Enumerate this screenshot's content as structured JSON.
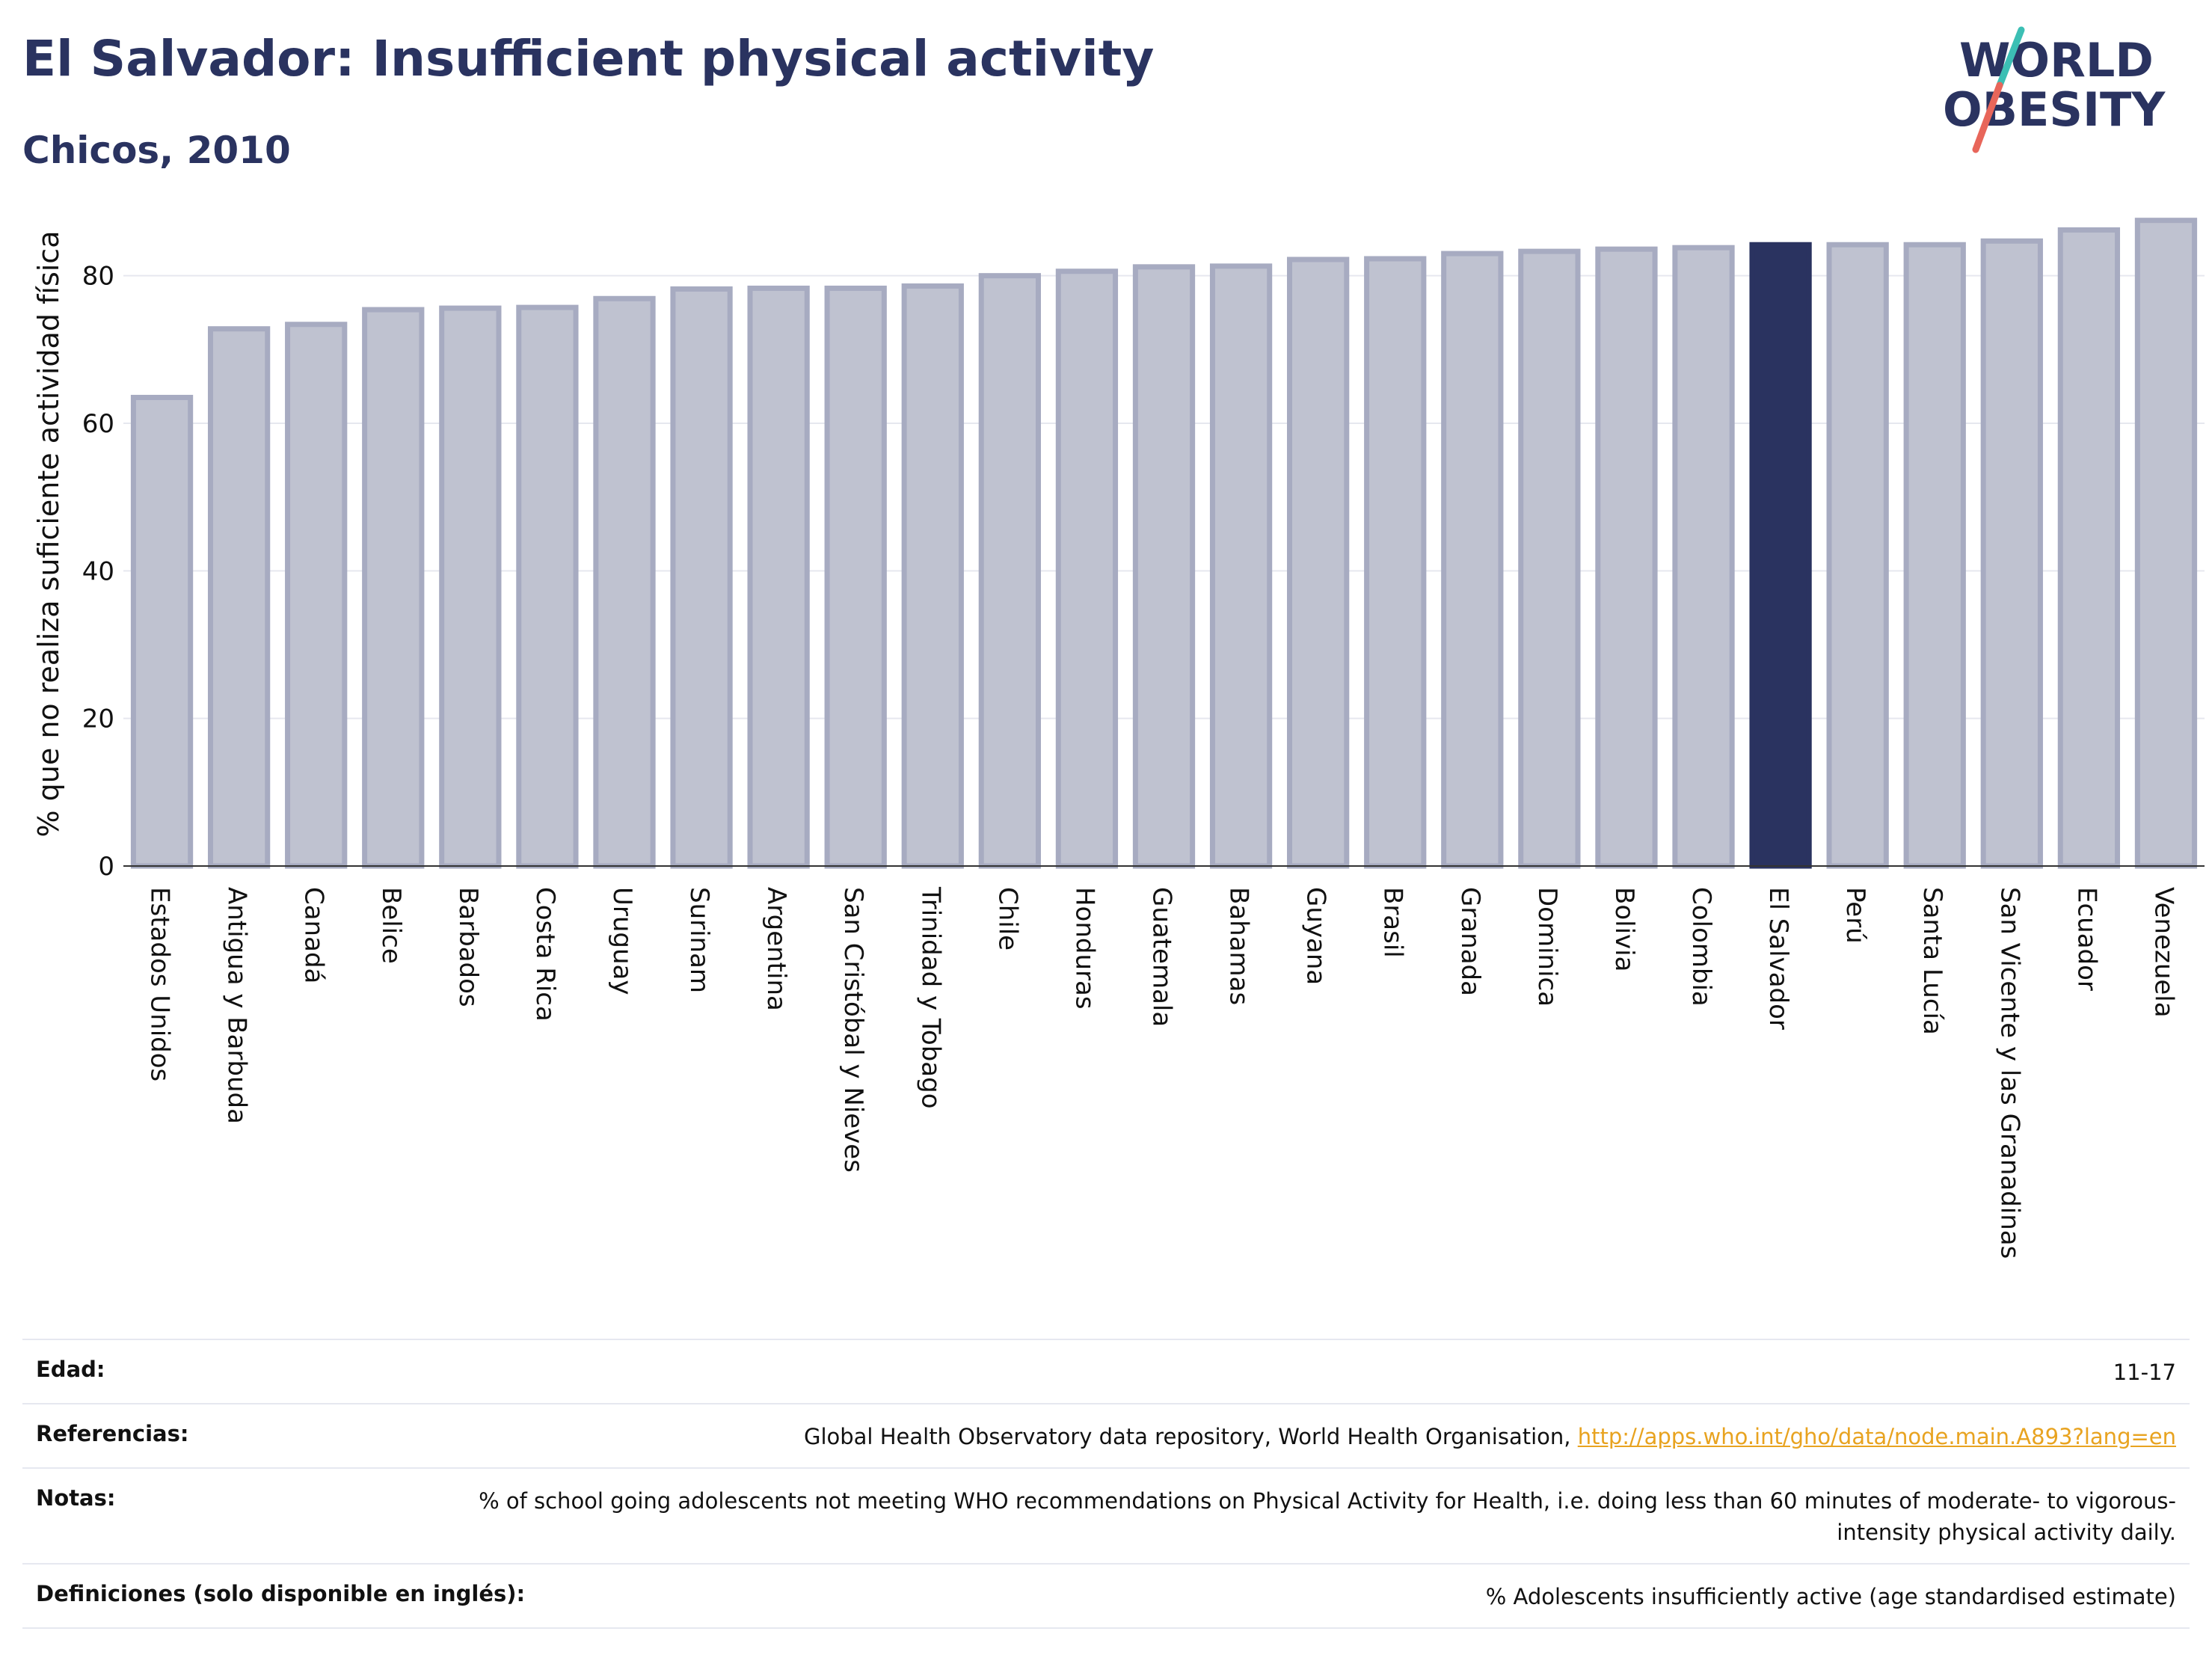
{
  "header": {
    "title": "El Salvador: Insufficient physical activity",
    "subtitle": "Chicos, 2010"
  },
  "logo": {
    "line1": "WORLD",
    "line2": "OBESITY",
    "colors": {
      "text": "#2a3360",
      "slash_teal": "#3cbfb4",
      "slash_red": "#e8665a"
    }
  },
  "chart_data": {
    "type": "bar",
    "title": "",
    "xlabel": "",
    "ylabel": "% que no realiza suficiente actividad física",
    "ylim": [
      0,
      90
    ],
    "yticks": [
      0,
      20,
      40,
      60,
      80
    ],
    "grid": true,
    "highlight": "El Salvador",
    "colors": {
      "bar": "#bfc2d0",
      "bar_edge": "#a7abc1",
      "highlight": "#2a3360",
      "grid": "#e6e8ef"
    },
    "categories": [
      "Estados Unidos",
      "Antigua y Barbuda",
      "Canadá",
      "Belice",
      "Barbados",
      "Costa Rica",
      "Uruguay",
      "Surinam",
      "Argentina",
      "San Cristóbal y Nieves",
      "Trinidad y Tobago",
      "Chile",
      "Honduras",
      "Guatemala",
      "Bahamas",
      "Guyana",
      "Brasil",
      "Granada",
      "Dominica",
      "Bolivia",
      "Colombia",
      "El Salvador",
      "Perú",
      "Santa Lucía",
      "San Vicente y las Granadinas",
      "Ecuador",
      "Venezuela"
    ],
    "values": [
      63.5,
      72.8,
      73.4,
      75.4,
      75.6,
      75.7,
      76.9,
      78.2,
      78.3,
      78.3,
      78.6,
      80.0,
      80.6,
      81.2,
      81.3,
      82.2,
      82.3,
      83.0,
      83.3,
      83.6,
      83.8,
      84.2,
      84.2,
      84.2,
      84.7,
      86.2,
      87.5
    ]
  },
  "meta": {
    "rows": [
      {
        "label": "Edad:",
        "value": "11-17"
      },
      {
        "label": "Referencias:",
        "value": "Global Health Observatory data repository, World Health Organisation, ",
        "link": "http://apps.who.int/gho/data/node.main.A893?lang=en"
      },
      {
        "label": "Notas:",
        "value": "% of school going adolescents not meeting WHO recommendations on Physical Activity for Health, i.e. doing less than 60 minutes of moderate- to vigorous-intensity physical activity daily."
      },
      {
        "label": "Definiciones (solo disponible en inglés):",
        "value": "% Adolescents insufficiently active (age standardised estimate)"
      }
    ]
  }
}
